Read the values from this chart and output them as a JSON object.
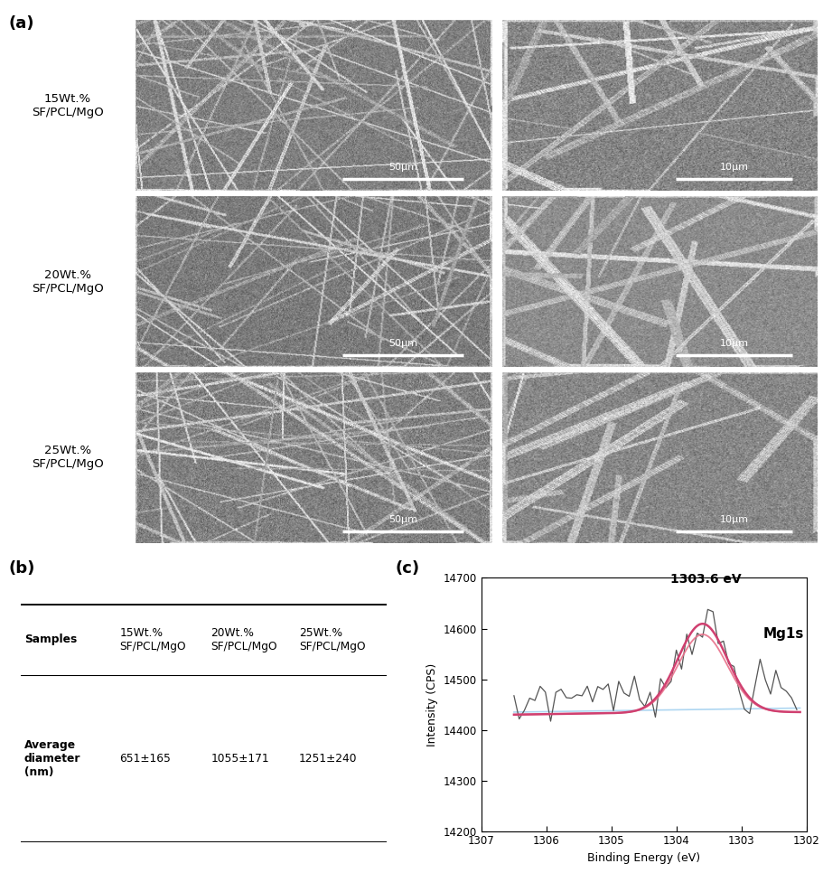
{
  "panel_a_label": "(a)",
  "panel_b_label": "(b)",
  "panel_c_label": "(c)",
  "row_labels": [
    "15Wt.%\nSF/PCL/MgO",
    "20Wt.%\nSF/PCL/MgO",
    "25Wt.%\nSF/PCL/MgO"
  ],
  "scale_labels_left": [
    "50μm",
    "50μm",
    "50μm"
  ],
  "scale_labels_right": [
    "10μm",
    "10μm",
    "10μm"
  ],
  "xps_title": "1303.6 eV",
  "xps_label": "Mg1s",
  "xps_xlabel": "Binding Energy (eV)",
  "xps_ylabel": "Intensity (CPS)",
  "xps_xlim": [
    1307,
    1302
  ],
  "xps_ylim": [
    14200,
    14700
  ],
  "xps_yticks": [
    14200,
    14300,
    14400,
    14500,
    14600,
    14700
  ],
  "xps_xticks": [
    1307,
    1306,
    1305,
    1304,
    1303,
    1302
  ],
  "raw_color": "#555555",
  "fit_color": "#e8708a",
  "bg_color": "#aed6f1",
  "envelope_color": "#d04070",
  "table_headers": [
    "Samples",
    "15Wt.%\nSF/PCL/MgO",
    "20Wt.%\nSF/PCL/MgO",
    "25Wt.%\nSF/PCL/MgO"
  ],
  "table_row_label": "Average\ndiameter\n(nm)",
  "table_values": [
    "651±165",
    "1055±171",
    "1251±240"
  ],
  "sem_gray_values": [
    0.5,
    0.52,
    0.48,
    0.55,
    0.5,
    0.53
  ],
  "sem_noise_std": [
    0.08,
    0.09,
    0.08,
    0.07,
    0.09,
    0.08
  ]
}
